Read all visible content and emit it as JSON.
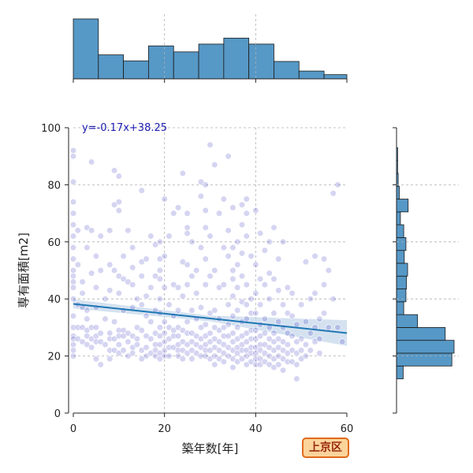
{
  "chart_data": {
    "type": "scatter",
    "title": "",
    "xlabel": "築年数[年]",
    "ylabel": "専有面積[m2]",
    "xlim": [
      0,
      60
    ],
    "ylim": [
      0,
      100
    ],
    "xticks": [
      0,
      20,
      40,
      60
    ],
    "yticks": [
      0,
      20,
      40,
      60,
      80,
      100
    ],
    "grid": true,
    "annotation": "y=-0.17x+38.25",
    "badge": "上京区",
    "regression": {
      "slope": -0.17,
      "intercept": 38.25
    },
    "colors": {
      "points": "#3f3fc4",
      "line": "#1f77b4",
      "band": "#b8cfe6",
      "hist": "#5698c6",
      "equation": "#1a1ab0",
      "badge_border": "#e06a1b",
      "badge_fill": "#fbd49a",
      "badge_text": "#9a2a10"
    },
    "x_histogram": {
      "bin_edges": [
        0,
        5.5,
        11,
        16.5,
        22,
        27.5,
        33,
        38.5,
        44,
        49.5,
        55,
        60
      ],
      "counts": [
        100,
        40,
        30,
        55,
        45,
        58,
        68,
        58,
        29,
        13,
        7
      ]
    },
    "y_histogram": {
      "bin_edges": [
        12,
        16.5,
        21,
        25.5,
        30,
        34.5,
        39,
        43.5,
        48,
        52.5,
        57,
        61.5,
        66,
        70.5,
        75,
        79.5,
        84,
        88.5,
        93
      ],
      "counts": [
        12,
        100,
        104,
        88,
        38,
        13,
        17,
        18,
        20,
        14,
        17,
        13,
        7,
        21,
        5,
        3,
        2,
        2
      ]
    },
    "points": [
      [
        0,
        92
      ],
      [
        0,
        90
      ],
      [
        0,
        81
      ],
      [
        0,
        74
      ],
      [
        0,
        70
      ],
      [
        0,
        66
      ],
      [
        0,
        62
      ],
      [
        0,
        58
      ],
      [
        0,
        54
      ],
      [
        0,
        50
      ],
      [
        0,
        48
      ],
      [
        0,
        46
      ],
      [
        0,
        44
      ],
      [
        0,
        40
      ],
      [
        0,
        34
      ],
      [
        0,
        30
      ],
      [
        0,
        27
      ],
      [
        0,
        26
      ],
      [
        0,
        24
      ],
      [
        0,
        22
      ],
      [
        0,
        20
      ],
      [
        1,
        64
      ],
      [
        1,
        52
      ],
      [
        1,
        38
      ],
      [
        1,
        30
      ],
      [
        1,
        26
      ],
      [
        2,
        46
      ],
      [
        2,
        42
      ],
      [
        2,
        37
      ],
      [
        2,
        30
      ],
      [
        2,
        25
      ],
      [
        3,
        65
      ],
      [
        3,
        58
      ],
      [
        3,
        36
      ],
      [
        3,
        33
      ],
      [
        3,
        29
      ],
      [
        3,
        27
      ],
      [
        3,
        24
      ],
      [
        4,
        88
      ],
      [
        4,
        64
      ],
      [
        4,
        49
      ],
      [
        4,
        30
      ],
      [
        4,
        26
      ],
      [
        4,
        23
      ],
      [
        5,
        55
      ],
      [
        5,
        44
      ],
      [
        5,
        37
      ],
      [
        5,
        30
      ],
      [
        5,
        27
      ],
      [
        5,
        25
      ],
      [
        5,
        19
      ],
      [
        6,
        62
      ],
      [
        6,
        50
      ],
      [
        6,
        28
      ],
      [
        6,
        25
      ],
      [
        6,
        17
      ],
      [
        7,
        40
      ],
      [
        7,
        33
      ],
      [
        7,
        24
      ],
      [
        8,
        64
      ],
      [
        8,
        52
      ],
      [
        8,
        43
      ],
      [
        8,
        28
      ],
      [
        8,
        26
      ],
      [
        8,
        22
      ],
      [
        8,
        19
      ],
      [
        9,
        85
      ],
      [
        9,
        73
      ],
      [
        9,
        50
      ],
      [
        9,
        32
      ],
      [
        9,
        26
      ],
      [
        9,
        22
      ],
      [
        10,
        83
      ],
      [
        10,
        74
      ],
      [
        10,
        71
      ],
      [
        10,
        48
      ],
      [
        10,
        42
      ],
      [
        10,
        29
      ],
      [
        10,
        27
      ],
      [
        10,
        24
      ],
      [
        10,
        21
      ],
      [
        11,
        55
      ],
      [
        11,
        47
      ],
      [
        11,
        36
      ],
      [
        11,
        29
      ],
      [
        11,
        27
      ],
      [
        11,
        22
      ],
      [
        12,
        64
      ],
      [
        12,
        46
      ],
      [
        12,
        28
      ],
      [
        12,
        25
      ],
      [
        12,
        20
      ],
      [
        13,
        58
      ],
      [
        13,
        51
      ],
      [
        13,
        45
      ],
      [
        13,
        37
      ],
      [
        13,
        27
      ],
      [
        13,
        23
      ],
      [
        13,
        21
      ],
      [
        14,
        40
      ],
      [
        14,
        30
      ],
      [
        14,
        26
      ],
      [
        14,
        24
      ],
      [
        15,
        78
      ],
      [
        15,
        53
      ],
      [
        15,
        48
      ],
      [
        15,
        38
      ],
      [
        15,
        29
      ],
      [
        15,
        22
      ],
      [
        15,
        19
      ],
      [
        16,
        54
      ],
      [
        16,
        41
      ],
      [
        16,
        34
      ],
      [
        16,
        27
      ],
      [
        16,
        23
      ],
      [
        16,
        20
      ],
      [
        17,
        62
      ],
      [
        17,
        44
      ],
      [
        17,
        32
      ],
      [
        17,
        26
      ],
      [
        17,
        21
      ],
      [
        18,
        59
      ],
      [
        18,
        48
      ],
      [
        18,
        36
      ],
      [
        18,
        28
      ],
      [
        18,
        24
      ],
      [
        18,
        22
      ],
      [
        18,
        20
      ],
      [
        19,
        60
      ],
      [
        19,
        54
      ],
      [
        19,
        50
      ],
      [
        19,
        47
      ],
      [
        19,
        40
      ],
      [
        19,
        35
      ],
      [
        19,
        30
      ],
      [
        19,
        27
      ],
      [
        19,
        24
      ],
      [
        19,
        21
      ],
      [
        19,
        19
      ],
      [
        20,
        75
      ],
      [
        20,
        55
      ],
      [
        20,
        44
      ],
      [
        20,
        32
      ],
      [
        20,
        28
      ],
      [
        20,
        25
      ],
      [
        20,
        22
      ],
      [
        20,
        20
      ],
      [
        21,
        62
      ],
      [
        21,
        38
      ],
      [
        21,
        30
      ],
      [
        21,
        26
      ],
      [
        21,
        23
      ],
      [
        21,
        20
      ],
      [
        22,
        70
      ],
      [
        22,
        45
      ],
      [
        22,
        34
      ],
      [
        22,
        29
      ],
      [
        22,
        27
      ],
      [
        22,
        23
      ],
      [
        23,
        72
      ],
      [
        23,
        44
      ],
      [
        23,
        36
      ],
      [
        23,
        30
      ],
      [
        23,
        27
      ],
      [
        23,
        24
      ],
      [
        23,
        22
      ],
      [
        23,
        20
      ],
      [
        24,
        84
      ],
      [
        24,
        53
      ],
      [
        24,
        41
      ],
      [
        24,
        29
      ],
      [
        24,
        25
      ],
      [
        24,
        22
      ],
      [
        24,
        19
      ],
      [
        25,
        70
      ],
      [
        25,
        65
      ],
      [
        25,
        63
      ],
      [
        25,
        52
      ],
      [
        25,
        45
      ],
      [
        25,
        32
      ],
      [
        25,
        28
      ],
      [
        25,
        24
      ],
      [
        25,
        21
      ],
      [
        26,
        60
      ],
      [
        26,
        48
      ],
      [
        26,
        36
      ],
      [
        26,
        28
      ],
      [
        26,
        25
      ],
      [
        26,
        22
      ],
      [
        26,
        19
      ],
      [
        27,
        50
      ],
      [
        27,
        42
      ],
      [
        27,
        33
      ],
      [
        27,
        27
      ],
      [
        27,
        24
      ],
      [
        27,
        21
      ],
      [
        28,
        81
      ],
      [
        28,
        76
      ],
      [
        28,
        58
      ],
      [
        28,
        37
      ],
      [
        28,
        30
      ],
      [
        28,
        26
      ],
      [
        28,
        23
      ],
      [
        28,
        20
      ],
      [
        29,
        80
      ],
      [
        29,
        71
      ],
      [
        29,
        65
      ],
      [
        29,
        54
      ],
      [
        29,
        45
      ],
      [
        29,
        31
      ],
      [
        29,
        27
      ],
      [
        29,
        24
      ],
      [
        29,
        22
      ],
      [
        29,
        20
      ],
      [
        30,
        94
      ],
      [
        30,
        62
      ],
      [
        30,
        48
      ],
      [
        30,
        35
      ],
      [
        30,
        28
      ],
      [
        30,
        25
      ],
      [
        30,
        22
      ],
      [
        30,
        19
      ],
      [
        31,
        87
      ],
      [
        31,
        50
      ],
      [
        31,
        36
      ],
      [
        31,
        30
      ],
      [
        31,
        26
      ],
      [
        31,
        23
      ],
      [
        31,
        20
      ],
      [
        31,
        17
      ],
      [
        32,
        70
      ],
      [
        32,
        44
      ],
      [
        32,
        33
      ],
      [
        32,
        29
      ],
      [
        32,
        25
      ],
      [
        32,
        22
      ],
      [
        32,
        19
      ],
      [
        33,
        75
      ],
      [
        33,
        58
      ],
      [
        33,
        45
      ],
      [
        33,
        30
      ],
      [
        33,
        27
      ],
      [
        33,
        24
      ],
      [
        33,
        21
      ],
      [
        33,
        18
      ],
      [
        34,
        90
      ],
      [
        34,
        64
      ],
      [
        34,
        55
      ],
      [
        34,
        38
      ],
      [
        34,
        31
      ],
      [
        34,
        27
      ],
      [
        34,
        23
      ],
      [
        34,
        20
      ],
      [
        35,
        72
      ],
      [
        35,
        58
      ],
      [
        35,
        50
      ],
      [
        35,
        47
      ],
      [
        35,
        41
      ],
      [
        35,
        34
      ],
      [
        35,
        28
      ],
      [
        35,
        25
      ],
      [
        35,
        22
      ],
      [
        35,
        19
      ],
      [
        35,
        16
      ],
      [
        36,
        60
      ],
      [
        36,
        52
      ],
      [
        36,
        44
      ],
      [
        36,
        36
      ],
      [
        36,
        30
      ],
      [
        36,
        26
      ],
      [
        36,
        23
      ],
      [
        36,
        21
      ],
      [
        36,
        18
      ],
      [
        37,
        73
      ],
      [
        37,
        66
      ],
      [
        37,
        56
      ],
      [
        37,
        48
      ],
      [
        37,
        39
      ],
      [
        37,
        32
      ],
      [
        37,
        27
      ],
      [
        37,
        24
      ],
      [
        37,
        22
      ],
      [
        37,
        19
      ],
      [
        38,
        75
      ],
      [
        38,
        70
      ],
      [
        38,
        62
      ],
      [
        38,
        45
      ],
      [
        38,
        38
      ],
      [
        38,
        33
      ],
      [
        38,
        28
      ],
      [
        38,
        25
      ],
      [
        38,
        22
      ],
      [
        38,
        20
      ],
      [
        38,
        17
      ],
      [
        39,
        55
      ],
      [
        39,
        40
      ],
      [
        39,
        35
      ],
      [
        39,
        29
      ],
      [
        39,
        26
      ],
      [
        39,
        23
      ],
      [
        39,
        21
      ],
      [
        39,
        18
      ],
      [
        40,
        71
      ],
      [
        40,
        52
      ],
      [
        40,
        42
      ],
      [
        40,
        35
      ],
      [
        40,
        29
      ],
      [
        40,
        26
      ],
      [
        40,
        23
      ],
      [
        40,
        21
      ],
      [
        40,
        19
      ],
      [
        40,
        17
      ],
      [
        41,
        63
      ],
      [
        41,
        47
      ],
      [
        41,
        38
      ],
      [
        41,
        31
      ],
      [
        41,
        27
      ],
      [
        41,
        24
      ],
      [
        41,
        22
      ],
      [
        41,
        19
      ],
      [
        41,
        17
      ],
      [
        42,
        57
      ],
      [
        42,
        45
      ],
      [
        42,
        33
      ],
      [
        42,
        28
      ],
      [
        42,
        24
      ],
      [
        42,
        21
      ],
      [
        42,
        18
      ],
      [
        43,
        60
      ],
      [
        43,
        49
      ],
      [
        43,
        40
      ],
      [
        43,
        30
      ],
      [
        43,
        26
      ],
      [
        43,
        23
      ],
      [
        43,
        20
      ],
      [
        43,
        17
      ],
      [
        44,
        65
      ],
      [
        44,
        47
      ],
      [
        44,
        35
      ],
      [
        44,
        28
      ],
      [
        44,
        25
      ],
      [
        44,
        22
      ],
      [
        44,
        19
      ],
      [
        44,
        16
      ],
      [
        45,
        54
      ],
      [
        45,
        43
      ],
      [
        45,
        32
      ],
      [
        45,
        26
      ],
      [
        45,
        23
      ],
      [
        45,
        20
      ],
      [
        45,
        17
      ],
      [
        46,
        60
      ],
      [
        46,
        38
      ],
      [
        46,
        30
      ],
      [
        46,
        25
      ],
      [
        46,
        22
      ],
      [
        46,
        19
      ],
      [
        46,
        15
      ],
      [
        47,
        44
      ],
      [
        47,
        35
      ],
      [
        47,
        28
      ],
      [
        47,
        24
      ],
      [
        47,
        21
      ],
      [
        47,
        18
      ],
      [
        48,
        42
      ],
      [
        48,
        34
      ],
      [
        48,
        27
      ],
      [
        48,
        22
      ],
      [
        48,
        18
      ],
      [
        49,
        31
      ],
      [
        49,
        25
      ],
      [
        49,
        21
      ],
      [
        49,
        17
      ],
      [
        49,
        12
      ],
      [
        50,
        38
      ],
      [
        50,
        26
      ],
      [
        50,
        22
      ],
      [
        50,
        19
      ],
      [
        51,
        53
      ],
      [
        51,
        32
      ],
      [
        51,
        24
      ],
      [
        51,
        20
      ],
      [
        52,
        40
      ],
      [
        52,
        28
      ],
      [
        52,
        22
      ],
      [
        53,
        55
      ],
      [
        53,
        42
      ],
      [
        53,
        30
      ],
      [
        53,
        25
      ],
      [
        54,
        33
      ],
      [
        54,
        26
      ],
      [
        54,
        21
      ],
      [
        55,
        54
      ],
      [
        55,
        45
      ],
      [
        55,
        35
      ],
      [
        56,
        50
      ],
      [
        56,
        30
      ],
      [
        57,
        77
      ],
      [
        57,
        40
      ],
      [
        58,
        80
      ],
      [
        58,
        30
      ],
      [
        59,
        25
      ]
    ]
  }
}
